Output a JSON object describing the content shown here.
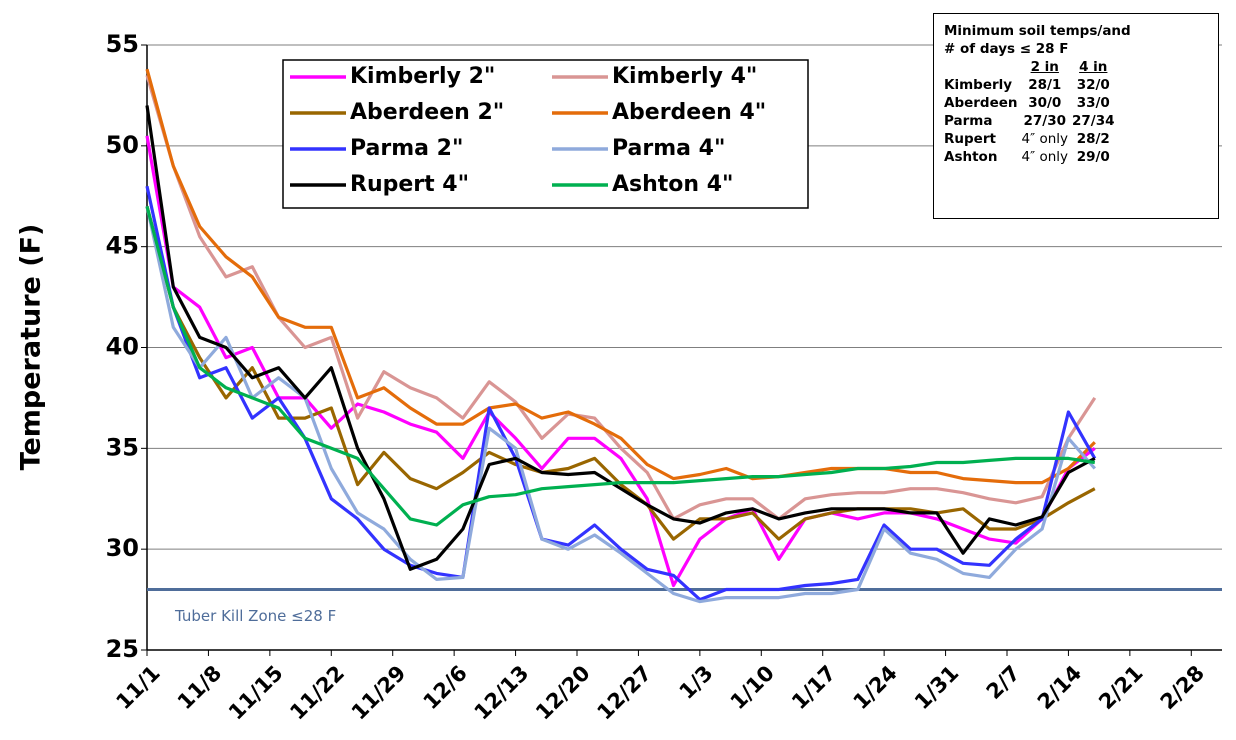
{
  "chart_data": {
    "type": "line",
    "y_label": "Temperature (F)",
    "ylim": [
      25,
      55
    ],
    "yticks": [
      25,
      30,
      35,
      40,
      45,
      50,
      55
    ],
    "grid": true,
    "xlim": [
      0,
      122.5
    ],
    "xticks": [
      {
        "value": 0,
        "label": "11/1"
      },
      {
        "value": 7,
        "label": "11/8"
      },
      {
        "value": 14,
        "label": "11/15"
      },
      {
        "value": 21,
        "label": "11/22"
      },
      {
        "value": 28,
        "label": "11/29"
      },
      {
        "value": 35,
        "label": "12/6"
      },
      {
        "value": 42,
        "label": "12/13"
      },
      {
        "value": 49,
        "label": "12/20"
      },
      {
        "value": 56,
        "label": "12/27"
      },
      {
        "value": 63,
        "label": "1/3"
      },
      {
        "value": 70,
        "label": "1/10"
      },
      {
        "value": 77,
        "label": "1/17"
      },
      {
        "value": 84,
        "label": "1/24"
      },
      {
        "value": 91,
        "label": "1/31"
      },
      {
        "value": 98,
        "label": "2/7"
      },
      {
        "value": 105,
        "label": "2/14"
      },
      {
        "value": 112,
        "label": "2/21"
      },
      {
        "value": 119,
        "label": "2/28"
      }
    ],
    "x": [
      0,
      3,
      6,
      9,
      12,
      15,
      18,
      21,
      24,
      27,
      30,
      33,
      36,
      39,
      42,
      45,
      48,
      51,
      54,
      57,
      60,
      63,
      66,
      69,
      72,
      75,
      78,
      81,
      84,
      87,
      90,
      93,
      96,
      99,
      102,
      105,
      108
    ],
    "series": [
      {
        "name": "Kimberly 2\"",
        "color": "#ff00ff",
        "values": [
          50.5,
          43,
          42,
          39.5,
          40,
          37.5,
          37.5,
          36,
          37.2,
          36.8,
          36.2,
          35.8,
          34.5,
          36.8,
          35.5,
          34,
          35.5,
          35.5,
          34.5,
          32.5,
          28.2,
          30.5,
          31.5,
          32,
          29.5,
          31.5,
          31.8,
          31.5,
          31.8,
          31.8,
          31.5,
          31,
          30.5,
          30.3,
          31.5,
          34,
          35
        ]
      },
      {
        "name": "Kimberly 4\"",
        "color": "#d99594",
        "values": [
          53.5,
          49,
          45.5,
          43.5,
          44,
          41.5,
          40,
          40.5,
          36.5,
          38.8,
          38,
          37.5,
          36.5,
          38.3,
          37.3,
          35.5,
          36.7,
          36.5,
          35,
          33.8,
          31.5,
          32.2,
          32.5,
          32.5,
          31.5,
          32.5,
          32.7,
          32.8,
          32.8,
          33,
          33,
          32.8,
          32.5,
          32.3,
          32.6,
          35.5,
          37.5
        ]
      },
      {
        "name": "Aberdeen 2\"",
        "color": "#996600",
        "values": [
          47,
          42,
          39.5,
          37.5,
          39,
          36.5,
          36.5,
          37,
          33.2,
          34.8,
          33.5,
          33,
          33.8,
          34.8,
          34.2,
          33.8,
          34,
          34.5,
          33.2,
          32.2,
          30.5,
          31.5,
          31.5,
          31.8,
          30.5,
          31.5,
          31.8,
          32,
          32,
          32,
          31.8,
          32,
          31,
          31,
          31.5,
          32.3,
          33
        ]
      },
      {
        "name": "Aberdeen 4\"",
        "color": "#e46c0a",
        "values": [
          53.8,
          49,
          46,
          44.5,
          43.5,
          41.5,
          41,
          41,
          37.5,
          38,
          37,
          36.2,
          36.2,
          37,
          37.2,
          36.5,
          36.8,
          36.2,
          35.5,
          34.2,
          33.5,
          33.7,
          34,
          33.5,
          33.6,
          33.8,
          34,
          34,
          34,
          33.8,
          33.8,
          33.5,
          33.4,
          33.3,
          33.3,
          34,
          35.3
        ]
      },
      {
        "name": "Parma 2\"",
        "color": "#3333ff",
        "values": [
          48,
          42,
          38.5,
          39,
          36.5,
          37.5,
          35.5,
          32.5,
          31.5,
          30,
          29.2,
          28.8,
          28.6,
          37,
          34.5,
          30.5,
          30.2,
          31.2,
          30,
          29,
          28.7,
          27.5,
          28,
          28,
          28,
          28.2,
          28.3,
          28.5,
          31.2,
          30,
          30,
          29.3,
          29.2,
          30.5,
          31.5,
          36.8,
          34.5
        ]
      },
      {
        "name": "Parma 4\"",
        "color": "#8faadc",
        "values": [
          47,
          41,
          39,
          40.5,
          37.5,
          38.5,
          37.5,
          34,
          31.8,
          31,
          29.5,
          28.5,
          28.6,
          36,
          35,
          30.5,
          30,
          30.7,
          29.8,
          28.8,
          27.8,
          27.4,
          27.6,
          27.6,
          27.6,
          27.8,
          27.8,
          28,
          31,
          29.8,
          29.5,
          28.8,
          28.6,
          30,
          31,
          35.5,
          34
        ]
      },
      {
        "name": "Rupert 4\"",
        "color": "#000000",
        "values": [
          52,
          43,
          40.5,
          40,
          38.5,
          39,
          37.5,
          39,
          35,
          32.5,
          29,
          29.5,
          31,
          34.2,
          34.5,
          33.8,
          33.7,
          33.8,
          33,
          32.2,
          31.5,
          31.3,
          31.8,
          32,
          31.5,
          31.8,
          32,
          32,
          32,
          31.8,
          31.8,
          29.8,
          31.5,
          31.2,
          31.6,
          33.8,
          34.5
        ]
      },
      {
        "name": "Ashton 4\"",
        "color": "#00b050",
        "values": [
          47,
          42,
          39,
          38,
          37.5,
          37,
          35.5,
          35,
          34.5,
          33,
          31.5,
          31.2,
          32.2,
          32.6,
          32.7,
          33,
          33.1,
          33.2,
          33.3,
          33.3,
          33.3,
          33.4,
          33.5,
          33.6,
          33.6,
          33.7,
          33.8,
          34,
          34,
          34.1,
          34.3,
          34.3,
          34.4,
          34.5,
          34.5,
          34.5,
          34.3
        ]
      }
    ],
    "reference_line": {
      "value": 28,
      "color": "#4f6d9a",
      "label": "Tuber Kill Zone ≤28 F"
    },
    "inset": {
      "title": [
        "Minimum soil temps/and",
        "# of days ≤ 28 F"
      ],
      "columns": [
        "2 in",
        "4 in"
      ],
      "rows": [
        [
          "Kimberly",
          "28/1",
          "32/0"
        ],
        [
          "Aberdeen",
          "30/0",
          "33/0"
        ],
        [
          "Parma",
          "27/30",
          "27/34"
        ],
        [
          "Rupert",
          "4″ only",
          "28/2"
        ],
        [
          "Ashton",
          "4″ only",
          "29/0"
        ]
      ]
    }
  }
}
